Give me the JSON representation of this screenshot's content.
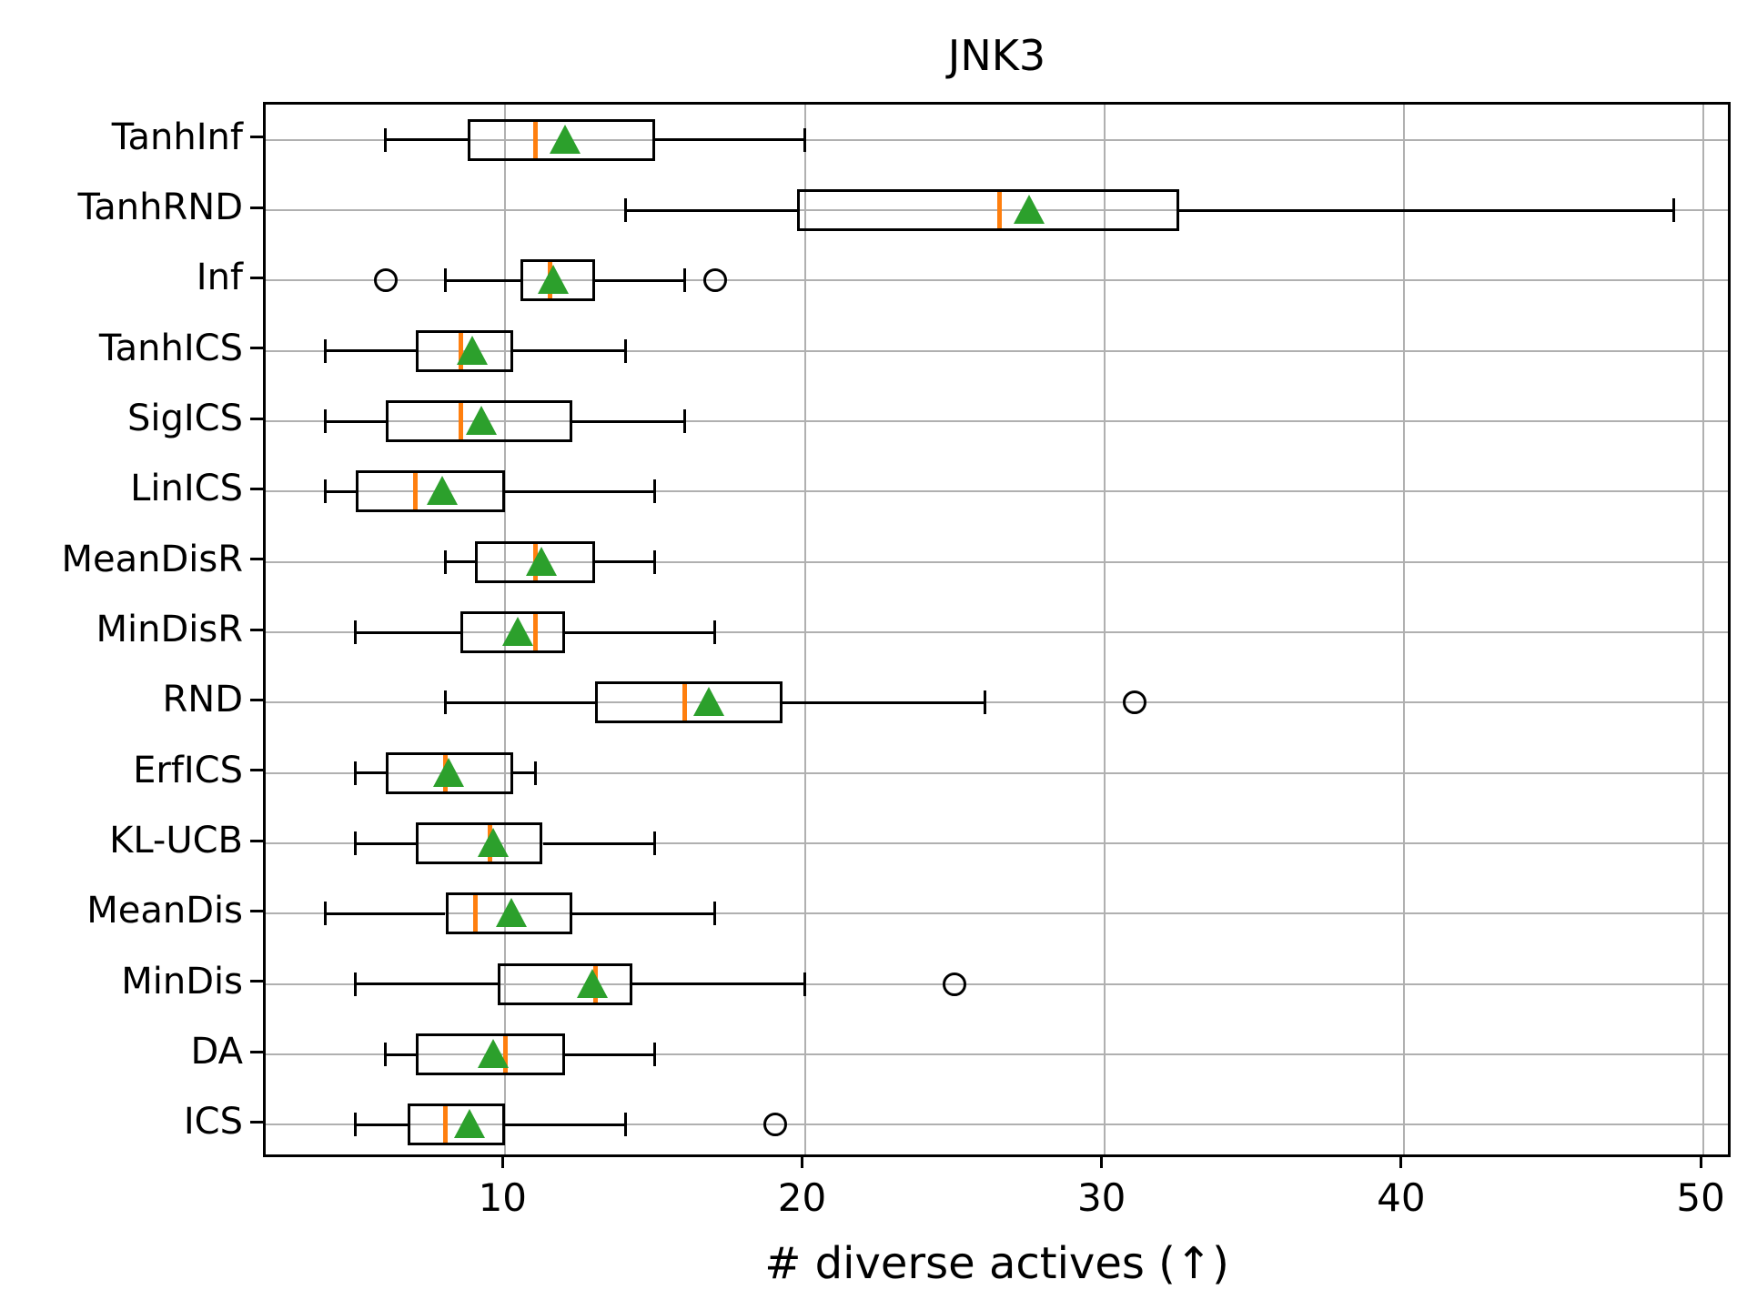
{
  "chart_data": {
    "type": "boxplot-horizontal",
    "title": "JNK3",
    "xlabel": "# diverse actives (↑)",
    "xlim": [
      2,
      51
    ],
    "xticks": [
      10,
      20,
      30,
      40,
      50
    ],
    "grid": true,
    "legend_position": "none",
    "categories": [
      "TanhInf",
      "TanhRND",
      "Inf",
      "TanhICS",
      "SigICS",
      "LinICS",
      "MeanDisR",
      "MinDisR",
      "RND",
      "ErfICS",
      "KL-UCB",
      "MeanDis",
      "MinDis",
      "DA",
      "ICS"
    ],
    "series": [
      {
        "name": "TanhInf",
        "whislo": 6,
        "q1": 8.75,
        "med": 11,
        "q3": 15,
        "whishi": 20,
        "mean": 12.0,
        "outliers": []
      },
      {
        "name": "TanhRND",
        "whislo": 14,
        "q1": 19.75,
        "med": 26.5,
        "q3": 32.5,
        "whishi": 49,
        "mean": 27.5,
        "outliers": []
      },
      {
        "name": "Inf",
        "whislo": 8,
        "q1": 10.5,
        "med": 11.5,
        "q3": 13,
        "whishi": 16,
        "mean": 11.6,
        "outliers": [
          6,
          17
        ]
      },
      {
        "name": "TanhICS",
        "whislo": 4,
        "q1": 7,
        "med": 8.5,
        "q3": 10.25,
        "whishi": 14,
        "mean": 8.9,
        "outliers": []
      },
      {
        "name": "SigICS",
        "whislo": 4,
        "q1": 6,
        "med": 8.5,
        "q3": 12.25,
        "whishi": 16,
        "mean": 9.2,
        "outliers": []
      },
      {
        "name": "LinICS",
        "whislo": 4,
        "q1": 5,
        "med": 7,
        "q3": 10,
        "whishi": 15,
        "mean": 7.9,
        "outliers": []
      },
      {
        "name": "MeanDisR",
        "whislo": 8,
        "q1": 9,
        "med": 11,
        "q3": 13,
        "whishi": 15,
        "mean": 11.2,
        "outliers": []
      },
      {
        "name": "MinDisR",
        "whislo": 5,
        "q1": 8.5,
        "med": 11,
        "q3": 12,
        "whishi": 17,
        "mean": 10.4,
        "outliers": []
      },
      {
        "name": "RND",
        "whislo": 8,
        "q1": 13,
        "med": 16,
        "q3": 19.25,
        "whishi": 26,
        "mean": 16.8,
        "outliers": [
          31
        ]
      },
      {
        "name": "ErfICS",
        "whislo": 5,
        "q1": 6,
        "med": 8,
        "q3": 10.25,
        "whishi": 11,
        "mean": 8.1,
        "outliers": []
      },
      {
        "name": "KL-UCB",
        "whislo": 5,
        "q1": 7,
        "med": 9.5,
        "q3": 11.25,
        "whishi": 15,
        "mean": 9.6,
        "outliers": []
      },
      {
        "name": "MeanDis",
        "whislo": 4,
        "q1": 8,
        "med": 9,
        "q3": 12.25,
        "whishi": 17,
        "mean": 10.2,
        "outliers": []
      },
      {
        "name": "MinDis",
        "whislo": 5,
        "q1": 9.75,
        "med": 13,
        "q3": 14.25,
        "whishi": 20,
        "mean": 12.9,
        "outliers": [
          25
        ]
      },
      {
        "name": "DA",
        "whislo": 6,
        "q1": 7,
        "med": 10,
        "q3": 12,
        "whishi": 15,
        "mean": 9.6,
        "outliers": []
      },
      {
        "name": "ICS",
        "whislo": 5,
        "q1": 6.75,
        "med": 8,
        "q3": 10,
        "whishi": 14,
        "mean": 8.8,
        "outliers": [
          19
        ]
      }
    ],
    "colors": {
      "median": "#ff7f0e",
      "mean_marker": "#2ca02c",
      "box_line": "#000000",
      "grid": "#b0b0b0",
      "background": "#ffffff"
    },
    "marker_styles": {
      "mean": "triangle-up",
      "outlier": "open-circle"
    }
  }
}
